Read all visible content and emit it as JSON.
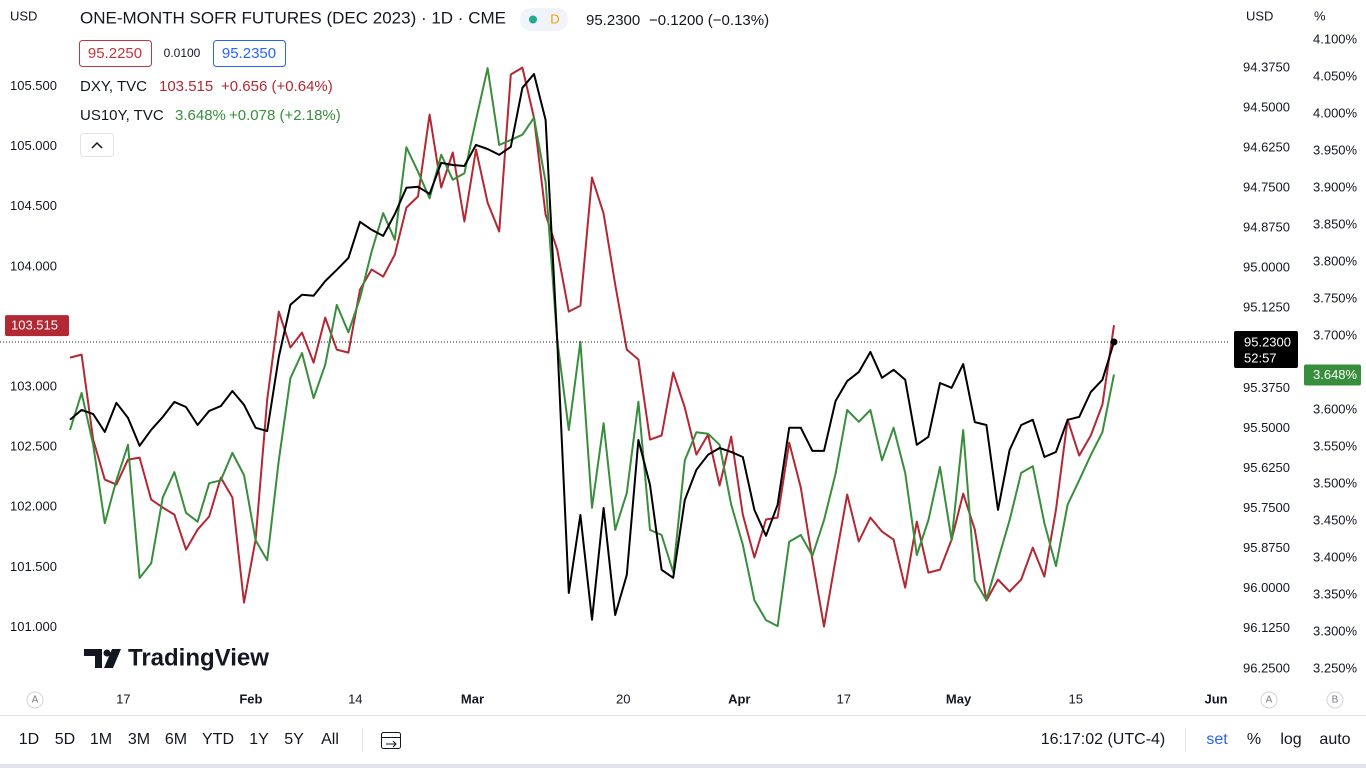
{
  "header": {
    "currency": "USD",
    "title": "ONE-MONTH SOFR FUTURES (DEC 2023) · 1D · CME",
    "badge": "D",
    "change": "−0.1200 (−0.13%)",
    "bid": "95.2250",
    "spread": "0.0100",
    "ask": "95.2350",
    "right_currency": "USD",
    "right_unit": "%"
  },
  "countdown": "52:57",
  "logo": "TradingView",
  "axis_buttons": [
    "A",
    "B"
  ],
  "toolbar": {
    "ranges": [
      "1D",
      "5D",
      "1M",
      "3M",
      "6M",
      "YTD",
      "1Y",
      "5Y",
      "All"
    ],
    "clock": "16:17:02 (UTC-4)",
    "options": [
      "set",
      "%",
      "log",
      "auto"
    ]
  },
  "chart_data": {
    "type": "line",
    "title": "ONE-MONTH SOFR FUTURES (DEC 2023) · 1D · CME",
    "xlim": [
      -6.03,
      100
    ],
    "xticks": [
      {
        "value": 4.6,
        "label": "17"
      },
      {
        "value": 15.6,
        "label": "Feb"
      },
      {
        "value": 24.6,
        "label": "14"
      },
      {
        "value": 34.7,
        "label": "Mar"
      },
      {
        "value": 47.7,
        "label": "20"
      },
      {
        "value": 57.7,
        "label": "Apr"
      },
      {
        "value": 66.7,
        "label": "17"
      },
      {
        "value": 76.6,
        "label": "May"
      },
      {
        "value": 86.7,
        "label": "15"
      },
      {
        "value": 98.8,
        "label": "Jun"
      }
    ],
    "ylim": [
      100.48,
      106.22
    ],
    "yticks": [
      {
        "value": 101,
        "label": "101.000"
      },
      {
        "value": 101.5,
        "label": "101.500"
      },
      {
        "value": 102,
        "label": "102.000"
      },
      {
        "value": 102.5,
        "label": "102.500"
      },
      {
        "value": 103,
        "label": "103.000"
      },
      {
        "value": 103.5,
        "label": "103.500"
      },
      {
        "value": 104,
        "label": "104.000"
      },
      {
        "value": 104.5,
        "label": "104.500"
      },
      {
        "value": 105,
        "label": "105.000"
      },
      {
        "value": 105.5,
        "label": "105.500"
      }
    ],
    "y2lim": [
      96.316,
      94.163
    ],
    "y2ticks": [
      {
        "value": 94.375,
        "label": "94.3750"
      },
      {
        "value": 94.5,
        "label": "94.5000"
      },
      {
        "value": 94.625,
        "label": "94.6250"
      },
      {
        "value": 94.75,
        "label": "94.7500"
      },
      {
        "value": 94.875,
        "label": "94.8750"
      },
      {
        "value": 95,
        "label": "95.0000"
      },
      {
        "value": 95.125,
        "label": "95.1250"
      },
      {
        "value": 95.375,
        "label": "95.3750"
      },
      {
        "value": 95.5,
        "label": "95.5000"
      },
      {
        "value": 95.625,
        "label": "95.6250"
      },
      {
        "value": 95.75,
        "label": "95.7500"
      },
      {
        "value": 95.875,
        "label": "95.8750"
      },
      {
        "value": 96,
        "label": "96.0000"
      },
      {
        "value": 96.125,
        "label": "96.1250"
      },
      {
        "value": 96.25,
        "label": "96.2500"
      }
    ],
    "y3lim": [
      3.2216,
      4.154
    ],
    "y3ticks": [
      {
        "value": 3.25,
        "label": "3.250%"
      },
      {
        "value": 3.3,
        "label": "3.300%"
      },
      {
        "value": 3.35,
        "label": "3.350%"
      },
      {
        "value": 3.4,
        "label": "3.400%"
      },
      {
        "value": 3.45,
        "label": "3.450%"
      },
      {
        "value": 3.5,
        "label": "3.500%"
      },
      {
        "value": 3.55,
        "label": "3.550%"
      },
      {
        "value": 3.6,
        "label": "3.600%"
      },
      {
        "value": 3.65,
        "label": "3.650%"
      },
      {
        "value": 3.7,
        "label": "3.700%"
      },
      {
        "value": 3.75,
        "label": "3.750%"
      },
      {
        "value": 3.8,
        "label": "3.800%"
      },
      {
        "value": 3.85,
        "label": "3.850%"
      },
      {
        "value": 3.9,
        "label": "3.900%"
      },
      {
        "value": 3.95,
        "label": "3.950%"
      },
      {
        "value": 4.0,
        "label": "4.000%"
      },
      {
        "value": 4.05,
        "label": "4.050%"
      },
      {
        "value": 4.1,
        "label": "4.100%"
      }
    ],
    "series": [
      {
        "name": "DXY, TVC",
        "axis": "y",
        "color": "#b22833",
        "last_label": "103.515",
        "change": "+0.656 (+0.64%)",
        "values": [
          103.245,
          103.27,
          102.563,
          102.23,
          102.189,
          102.397,
          102.413,
          102.064,
          101.997,
          101.939,
          101.648,
          101.814,
          101.923,
          102.247,
          102.081,
          101.207,
          101.731,
          102.896,
          103.628,
          103.329,
          103.453,
          103.204,
          103.578,
          103.312,
          103.287,
          103.811,
          103.978,
          103.919,
          104.102,
          104.493,
          104.585,
          105.267,
          104.66,
          104.951,
          104.377,
          104.976,
          104.535,
          104.294,
          105.6,
          105.658,
          105.242,
          104.435,
          104.144,
          103.628,
          103.678,
          104.743,
          104.443,
          103.853,
          103.312,
          103.229,
          102.563,
          102.597,
          103.121,
          102.829,
          102.438,
          102.605,
          102.181,
          102.588,
          101.939,
          101.582,
          101.898,
          101.914,
          102.538,
          102.164,
          101.565,
          101.007,
          101.565,
          102.106,
          101.715,
          101.914,
          101.798,
          101.731,
          101.332,
          101.881,
          101.457,
          101.482,
          101.731,
          102.114,
          101.814,
          101.224,
          101.399,
          101.299,
          101.399,
          101.665,
          101.423,
          101.981,
          102.73,
          102.43,
          102.597,
          102.854,
          103.515
        ]
      },
      {
        "name": "US10Y, TVC",
        "axis": "y3",
        "color": "#388e3c",
        "last_label": "3.648%",
        "change": "+0.078 (+2.18%)",
        "values": [
          3.573,
          3.623,
          3.553,
          3.447,
          3.505,
          3.553,
          3.373,
          3.393,
          3.482,
          3.516,
          3.461,
          3.449,
          3.501,
          3.505,
          3.542,
          3.512,
          3.424,
          3.397,
          3.532,
          3.643,
          3.677,
          3.616,
          3.661,
          3.742,
          3.705,
          3.751,
          3.814,
          3.866,
          3.83,
          3.955,
          3.922,
          3.886,
          3.945,
          3.911,
          3.92,
          3.992,
          4.062,
          3.958,
          3.965,
          3.972,
          3.995,
          3.908,
          3.695,
          3.573,
          3.692,
          3.468,
          3.582,
          3.438,
          3.488,
          3.611,
          3.438,
          3.431,
          3.381,
          3.532,
          3.57,
          3.568,
          3.553,
          3.472,
          3.418,
          3.343,
          3.316,
          3.308,
          3.422,
          3.431,
          3.403,
          3.451,
          3.514,
          3.6,
          3.584,
          3.6,
          3.532,
          3.576,
          3.515,
          3.404,
          3.451,
          3.523,
          3.424,
          3.573,
          3.37,
          3.343,
          3.397,
          3.451,
          3.515,
          3.524,
          3.447,
          3.389,
          3.472,
          3.505,
          3.539,
          3.57,
          3.648
        ]
      },
      {
        "axis": "y2",
        "color": "#000000",
        "last_label": "95.2300",
        "values": [
          95.473,
          95.442,
          95.455,
          95.511,
          95.42,
          95.467,
          95.554,
          95.504,
          95.464,
          95.417,
          95.433,
          95.489,
          95.445,
          95.43,
          95.383,
          95.426,
          95.498,
          95.508,
          95.277,
          95.114,
          95.083,
          95.086,
          95.04,
          95.005,
          94.968,
          94.855,
          94.88,
          94.899,
          94.831,
          94.749,
          94.746,
          94.768,
          94.671,
          94.678,
          94.681,
          94.615,
          94.628,
          94.646,
          94.621,
          94.437,
          94.394,
          94.537,
          95.224,
          96.013,
          95.77,
          96.097,
          95.748,
          96.082,
          95.957,
          95.536,
          95.676,
          95.941,
          95.966,
          95.723,
          95.629,
          95.582,
          95.561,
          95.573,
          95.589,
          95.754,
          95.835,
          95.738,
          95.498,
          95.498,
          95.57,
          95.57,
          95.414,
          95.352,
          95.324,
          95.261,
          95.342,
          95.317,
          95.348,
          95.551,
          95.526,
          95.358,
          95.373,
          95.299,
          95.48,
          95.489,
          95.754,
          95.567,
          95.489,
          95.473,
          95.589,
          95.573,
          95.473,
          95.464,
          95.386,
          95.348,
          95.23
        ]
      }
    ]
  }
}
